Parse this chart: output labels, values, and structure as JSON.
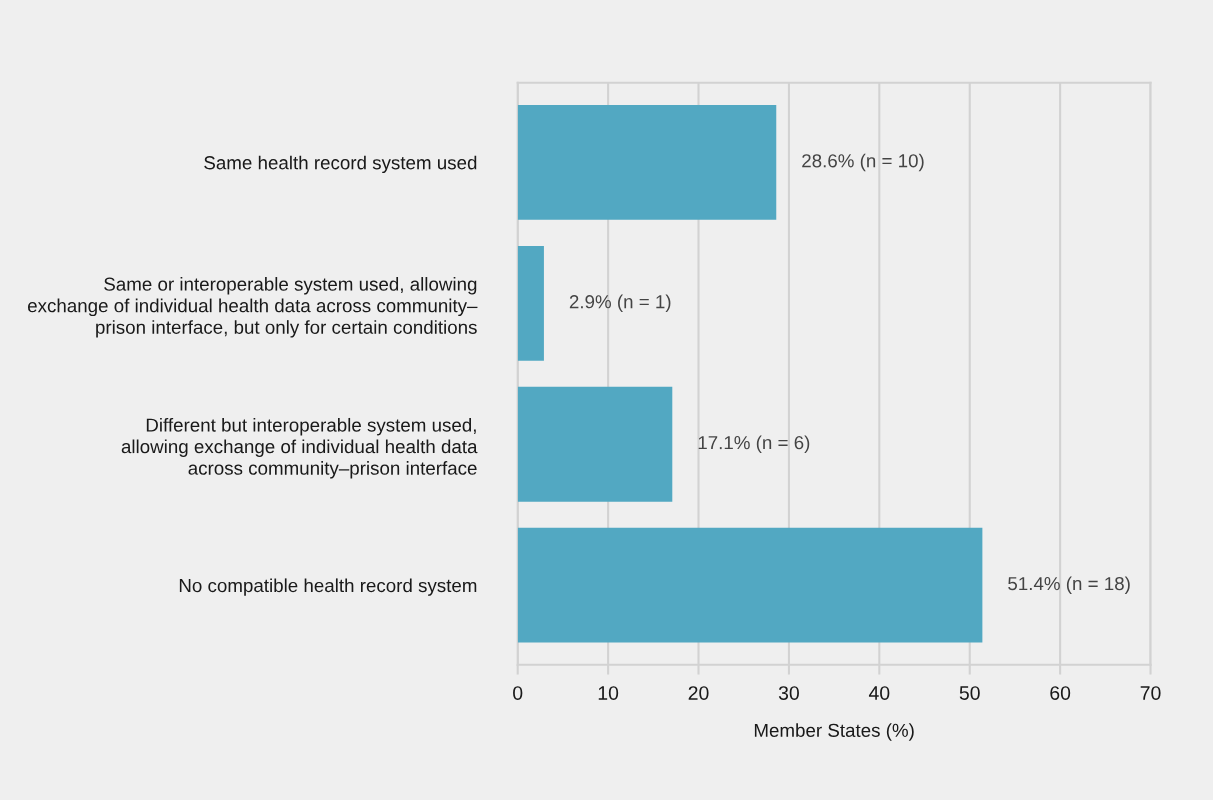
{
  "chart_data": {
    "type": "bar",
    "orientation": "horizontal",
    "categories": [
      "Same health record system used",
      "Same or interoperable system used, allowing\nexchange of individual health data across community–\nprison interface, but only for certain conditions",
      "Different but interoperable system used,\nallowing exchange of individual health data\nacross community–prison interface",
      "No compatible health record system"
    ],
    "values": [
      28.6,
      2.9,
      17.1,
      51.4
    ],
    "color": "#52a8c2",
    "value_labels": [
      "28.6% (n = 10)",
      "2.9% (n = 1)",
      "17.1% (n = 6)",
      "51.4% (n = 18)"
    ],
    "xlabel": "Member States (%)",
    "xlim": [
      0,
      70
    ],
    "xticks": [
      0,
      10,
      20,
      30,
      40,
      50,
      60,
      70
    ],
    "grid": "x"
  }
}
